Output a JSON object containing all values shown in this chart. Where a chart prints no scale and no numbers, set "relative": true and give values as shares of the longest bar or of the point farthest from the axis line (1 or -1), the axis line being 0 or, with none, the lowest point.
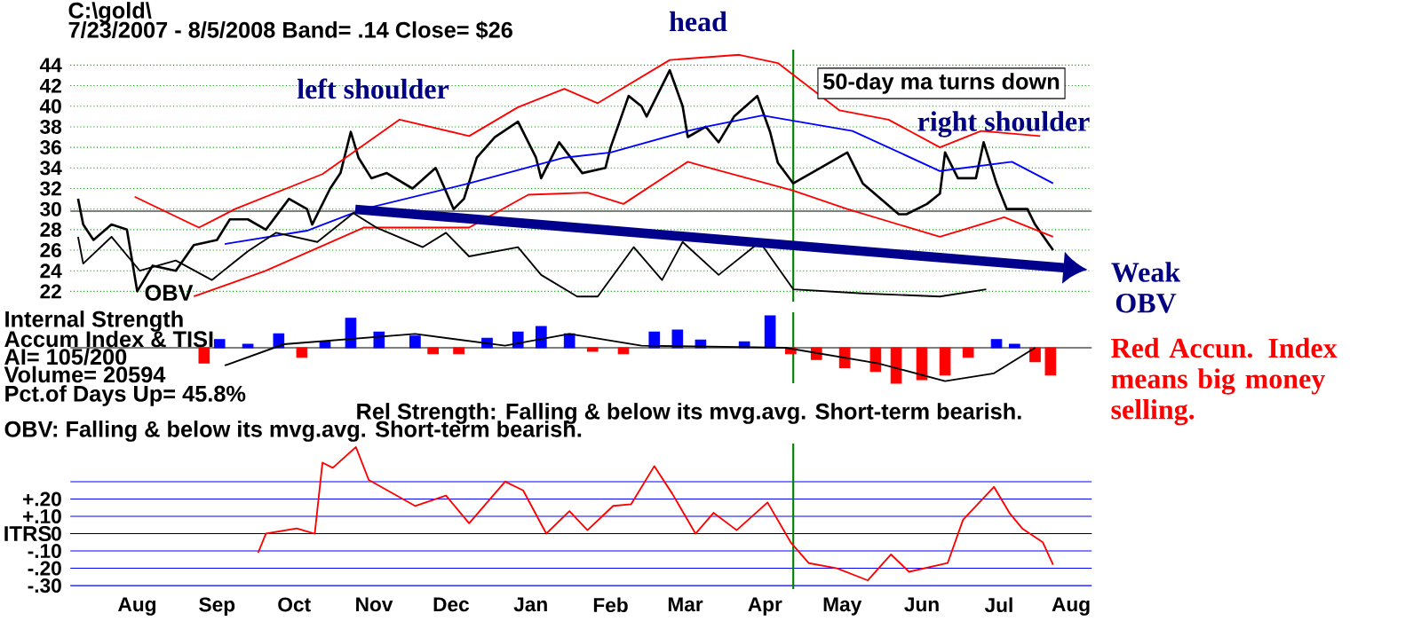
{
  "chart_data": [
    {
      "type": "line",
      "title": "C:\\gold\\",
      "subtitle": "7/23/2007 - 8/5/2008  Band= .14   Close= $26",
      "xlim": [
        "2007-07-20",
        "2008-08-20"
      ],
      "ylim": [
        21,
        45.5
      ],
      "yticks": [
        22,
        24,
        26,
        28,
        30,
        32,
        34,
        36,
        38,
        40,
        42,
        44
      ],
      "grid": "y",
      "tick_labels": "y",
      "series": [
        {
          "color": "#000000",
          "x": [
            "2007-07-23",
            "2007-07-25",
            "2007-07-29",
            "2007-08-05",
            "2007-08-11",
            "2007-08-15",
            "2007-08-21",
            "2007-08-30",
            "2007-09-06",
            "2007-09-15",
            "2007-09-20",
            "2007-09-27",
            "2007-10-04",
            "2007-10-13",
            "2007-10-20",
            "2007-10-22",
            "2007-10-29",
            "2007-11-02",
            "2007-11-06",
            "2007-11-09",
            "2007-11-14",
            "2007-11-20",
            "2007-11-30",
            "2007-12-09",
            "2007-12-16",
            "2007-12-20",
            "2007-12-25",
            "2008-01-01",
            "2008-01-10",
            "2008-01-17",
            "2008-01-19",
            "2008-01-26",
            "2008-02-04",
            "2008-02-13",
            "2008-02-15",
            "2008-02-22",
            "2008-02-27",
            "2008-02-29",
            "2008-03-09",
            "2008-03-14",
            "2008-03-16",
            "2008-03-23",
            "2008-03-28",
            "2008-04-03",
            "2008-04-12",
            "2008-04-17",
            "2008-04-20",
            "2008-04-26",
            "2008-05-03",
            "2008-05-17",
            "2008-05-23",
            "2008-05-30",
            "2008-06-06",
            "2008-06-09",
            "2008-06-17",
            "2008-06-22",
            "2008-06-24",
            "2008-06-29",
            "2008-07-06",
            "2008-07-09",
            "2008-07-14",
            "2008-07-18",
            "2008-07-26",
            "2008-07-29",
            "2008-08-05"
          ],
          "values": [
            31,
            28.5,
            27,
            28.5,
            28,
            22,
            24.5,
            24,
            26.5,
            27,
            29,
            29,
            28,
            31,
            30,
            28.5,
            32,
            33.5,
            37.5,
            35,
            33,
            33.5,
            32,
            34,
            30,
            31,
            35,
            37,
            38.5,
            35,
            33,
            36.5,
            33.5,
            34,
            36,
            41,
            40,
            39,
            43.5,
            40,
            37,
            38,
            36.5,
            39,
            41,
            37.5,
            34.5,
            32.5,
            33.5,
            35.5,
            32.5,
            31,
            29.5,
            29.5,
            30.5,
            31.5,
            35.5,
            33,
            33,
            36.5,
            32.5,
            30,
            30,
            28.5,
            26
          ]
        },
        {
          "color": "#ff0000",
          "x": [
            "2007-08-14",
            "2007-09-08",
            "2007-09-22",
            "2007-10-26",
            "2007-11-25",
            "2007-12-22",
            "2008-01-10",
            "2008-01-28",
            "2008-02-10",
            "2008-03-09",
            "2008-04-05",
            "2008-04-20",
            "2008-05-14",
            "2008-06-02",
            "2008-06-22",
            "2008-07-08",
            "2008-07-31"
          ],
          "values": [
            31.2,
            28.2,
            30,
            33.4,
            38.7,
            37.1,
            39.9,
            41.7,
            40.3,
            44.5,
            45,
            44.2,
            39.6,
            38.7,
            36,
            37.6,
            37.1
          ]
        },
        {
          "color": "#ff0000",
          "x": [
            "2007-09-06",
            "2007-10-04",
            "2007-11-11",
            "2007-12-22",
            "2008-01-14",
            "2008-02-06",
            "2008-02-20",
            "2008-03-16",
            "2008-03-23",
            "2008-04-26",
            "2008-05-17",
            "2008-06-22",
            "2008-07-17",
            "2008-08-05"
          ],
          "values": [
            21.5,
            24,
            28.2,
            28.2,
            31.4,
            31.6,
            30.5,
            34.6,
            34.1,
            31.8,
            30,
            27.3,
            29.2,
            27.3
          ]
        },
        {
          "color": "#0000ff",
          "x": [
            "2007-09-18",
            "2007-10-20",
            "2007-11-11",
            "2007-12-22",
            "2008-01-28",
            "2008-02-15",
            "2008-03-16",
            "2008-03-23",
            "2008-04-14",
            "2008-05-19",
            "2008-06-22",
            "2008-07-20",
            "2008-08-05"
          ],
          "values": [
            26.6,
            27.9,
            30,
            32.5,
            35,
            35.5,
            37.6,
            38,
            39.1,
            37.6,
            33.7,
            34.6,
            32.5
          ]
        },
        {
          "color": "#000000",
          "x": [
            "2007-07-23",
            "2007-07-25",
            "2007-08-05",
            "2007-08-16",
            "2007-08-30",
            "2007-09-13",
            "2007-09-27",
            "2007-10-08",
            "2007-10-24",
            "2007-11-07",
            "2007-11-16",
            "2007-12-04",
            "2007-12-13",
            "2007-12-22",
            "2008-01-10",
            "2008-01-19",
            "2008-02-02",
            "2008-02-10",
            "2008-02-24",
            "2008-03-06",
            "2008-03-14",
            "2008-03-28",
            "2008-04-13",
            "2008-04-26",
            "2008-05-23",
            "2008-06-22",
            "2008-07-10"
          ],
          "values": [
            27.3,
            24.7,
            27.3,
            24,
            25,
            23.1,
            25.9,
            27.7,
            26.8,
            29.6,
            28.2,
            26.3,
            27.7,
            25.4,
            26.3,
            23.6,
            21.5,
            21.5,
            26.3,
            23.1,
            26.8,
            23.6,
            26.8,
            22.2,
            21.8,
            21.5,
            22.2
          ]
        }
      ],
      "ref_lines": [
        {
          "axis": "y",
          "value": 29.8,
          "color": "#000000"
        },
        {
          "axis": "x",
          "value": "2008-04-26",
          "color": "#008000"
        }
      ],
      "annotations": [
        "head",
        "left shoulder",
        "right shoulder",
        "50-day ma turns down",
        "Weak OBV",
        "OBV"
      ]
    },
    {
      "type": "bar",
      "relative": true,
      "xlim": [
        "2007-07-20",
        "2008-08-20"
      ],
      "tick_labels": false,
      "series": [
        {
          "type": "bar",
          "x": [
            "2007-09-10",
            "2007-09-16",
            "2007-09-27",
            "2007-10-09",
            "2007-10-18",
            "2007-10-27",
            "2007-11-06",
            "2007-11-17",
            "2007-12-01",
            "2007-12-08",
            "2007-12-18",
            "2007-12-29",
            "2008-01-10",
            "2008-01-19",
            "2008-01-30",
            "2008-02-08",
            "2008-02-20",
            "2008-03-03",
            "2008-03-12",
            "2008-03-21",
            "2008-04-07",
            "2008-04-17",
            "2008-04-25",
            "2008-05-05",
            "2008-05-16",
            "2008-05-28",
            "2008-06-05",
            "2008-06-15",
            "2008-06-24",
            "2008-07-03",
            "2008-07-14",
            "2008-07-21",
            "2008-07-29",
            "2008-08-04"
          ],
          "values": [
            -0.43,
            0.23,
            0.1,
            0.39,
            -0.27,
            0.17,
            0.83,
            0.44,
            0.33,
            -0.17,
            -0.17,
            0.27,
            0.44,
            0.6,
            0.39,
            -0.1,
            -0.17,
            0.44,
            0.5,
            0.22,
            0.17,
            0.9,
            -0.17,
            -0.33,
            -0.56,
            -0.67,
            -1,
            -0.9,
            -0.77,
            -0.27,
            0.23,
            0.1,
            -0.39,
            -0.77
          ],
          "colors": [
            "#ff0000",
            "#0000ff",
            "#0000ff",
            "#0000ff",
            "#ff0000",
            "#0000ff",
            "#0000ff",
            "#0000ff",
            "#0000ff",
            "#ff0000",
            "#ff0000",
            "#0000ff",
            "#0000ff",
            "#0000ff",
            "#0000ff",
            "#ff0000",
            "#ff0000",
            "#0000ff",
            "#0000ff",
            "#0000ff",
            "#0000ff",
            "#0000ff",
            "#ff0000",
            "#ff0000",
            "#ff0000",
            "#ff0000",
            "#ff0000",
            "#ff0000",
            "#ff0000",
            "#ff0000",
            "#0000ff",
            "#0000ff",
            "#ff0000",
            "#ff0000"
          ]
        },
        {
          "type": "line",
          "color": "#000000",
          "x": [
            "2007-09-18",
            "2007-10-11",
            "2007-12-01",
            "2008-01-05",
            "2008-01-30",
            "2008-02-27",
            "2008-04-23",
            "2008-05-29",
            "2008-06-24",
            "2008-07-13",
            "2008-07-29"
          ],
          "values": [
            -0.5,
            0.1,
            0.39,
            0.06,
            0.39,
            0.06,
            0,
            -0.44,
            -0.94,
            -0.72,
            0
          ]
        }
      ],
      "ref_lines": [
        {
          "axis": "y",
          "value": 0,
          "color": "#000000"
        },
        {
          "axis": "x",
          "value": "2008-04-26",
          "color": "#008000"
        }
      ],
      "annotations": [
        "Internal Strength",
        "Accum Index & TISI",
        "AI= 105/200",
        "Volume= 20594",
        "Pct.of Days Up= 45.8%",
        "Red Accun. Index means big money selling."
      ]
    },
    {
      "type": "line",
      "ylabel": "ITRS",
      "xlim": [
        "2007-07-20",
        "2008-08-20"
      ],
      "ylim": [
        -0.32,
        0.52
      ],
      "grid": "y",
      "xticks": [
        {
          "value": "2007-08-15",
          "label": "Aug"
        },
        {
          "value": "2007-09-15",
          "label": "Sep"
        },
        {
          "value": "2007-10-15",
          "label": "Oct"
        },
        {
          "value": "2007-11-15",
          "label": "Nov"
        },
        {
          "value": "2007-12-15",
          "label": "Dec"
        },
        {
          "value": "2008-01-15",
          "label": "Jan"
        },
        {
          "value": "2008-02-15",
          "label": "Feb"
        },
        {
          "value": "2008-03-15",
          "label": "Mar"
        },
        {
          "value": "2008-04-15",
          "label": "Apr"
        },
        {
          "value": "2008-05-15",
          "label": "May"
        },
        {
          "value": "2008-06-15",
          "label": "Jun"
        },
        {
          "value": "2008-07-15",
          "label": "Jul"
        },
        {
          "value": "2008-08-12",
          "label": "Aug"
        }
      ],
      "yticks": [
        {
          "value": -0.3,
          "label": "-.30"
        },
        {
          "value": -0.2,
          "label": "-.20"
        },
        {
          "value": -0.1,
          "label": "-.10"
        },
        {
          "value": 0,
          "label": "0"
        },
        {
          "value": 0.1,
          "label": "+.10"
        },
        {
          "value": 0.2,
          "label": "+.20"
        },
        {
          "value": 0.3,
          "label": null
        }
      ],
      "series": [
        {
          "color": "#ff0000",
          "x": [
            "2007-10-01",
            "2007-10-04",
            "2007-10-16",
            "2007-10-23",
            "2007-10-26",
            "2007-10-30",
            "2007-11-08",
            "2007-11-13",
            "2007-12-01",
            "2007-12-13",
            "2007-12-22",
            "2008-01-05",
            "2008-01-12",
            "2008-01-21",
            "2008-01-30",
            "2008-02-06",
            "2008-02-16",
            "2008-02-23",
            "2008-03-03",
            "2008-03-10",
            "2008-03-19",
            "2008-03-26",
            "2008-04-04",
            "2008-04-16",
            "2008-04-25",
            "2008-05-02",
            "2008-05-13",
            "2008-05-25",
            "2008-06-03",
            "2008-06-10",
            "2008-06-25",
            "2008-07-01",
            "2008-07-13",
            "2008-07-19",
            "2008-07-24",
            "2008-08-01",
            "2008-08-05"
          ],
          "values": [
            -0.11,
            0,
            0.03,
            0,
            0.41,
            0.38,
            0.5,
            0.31,
            0.16,
            0.22,
            0.06,
            0.3,
            0.25,
            0,
            0.13,
            0.02,
            0.16,
            0.17,
            0.39,
            0.23,
            0,
            0.12,
            0.02,
            0.18,
            -0.05,
            -0.17,
            -0.2,
            -0.27,
            -0.12,
            -0.22,
            -0.17,
            0.08,
            0.27,
            0.12,
            0.03,
            -0.05,
            -0.18
          ]
        }
      ],
      "ref_lines": [
        {
          "axis": "y",
          "value": 0,
          "color": "#000000"
        },
        {
          "axis": "x",
          "value": "2008-04-26",
          "color": "#008000"
        }
      ],
      "annotations": [
        "Rel Strength: Falling & below its mvg.avg. Short-term bearish.",
        "OBV: Falling & below its mvg.avg. Short-term bearish."
      ]
    }
  ]
}
